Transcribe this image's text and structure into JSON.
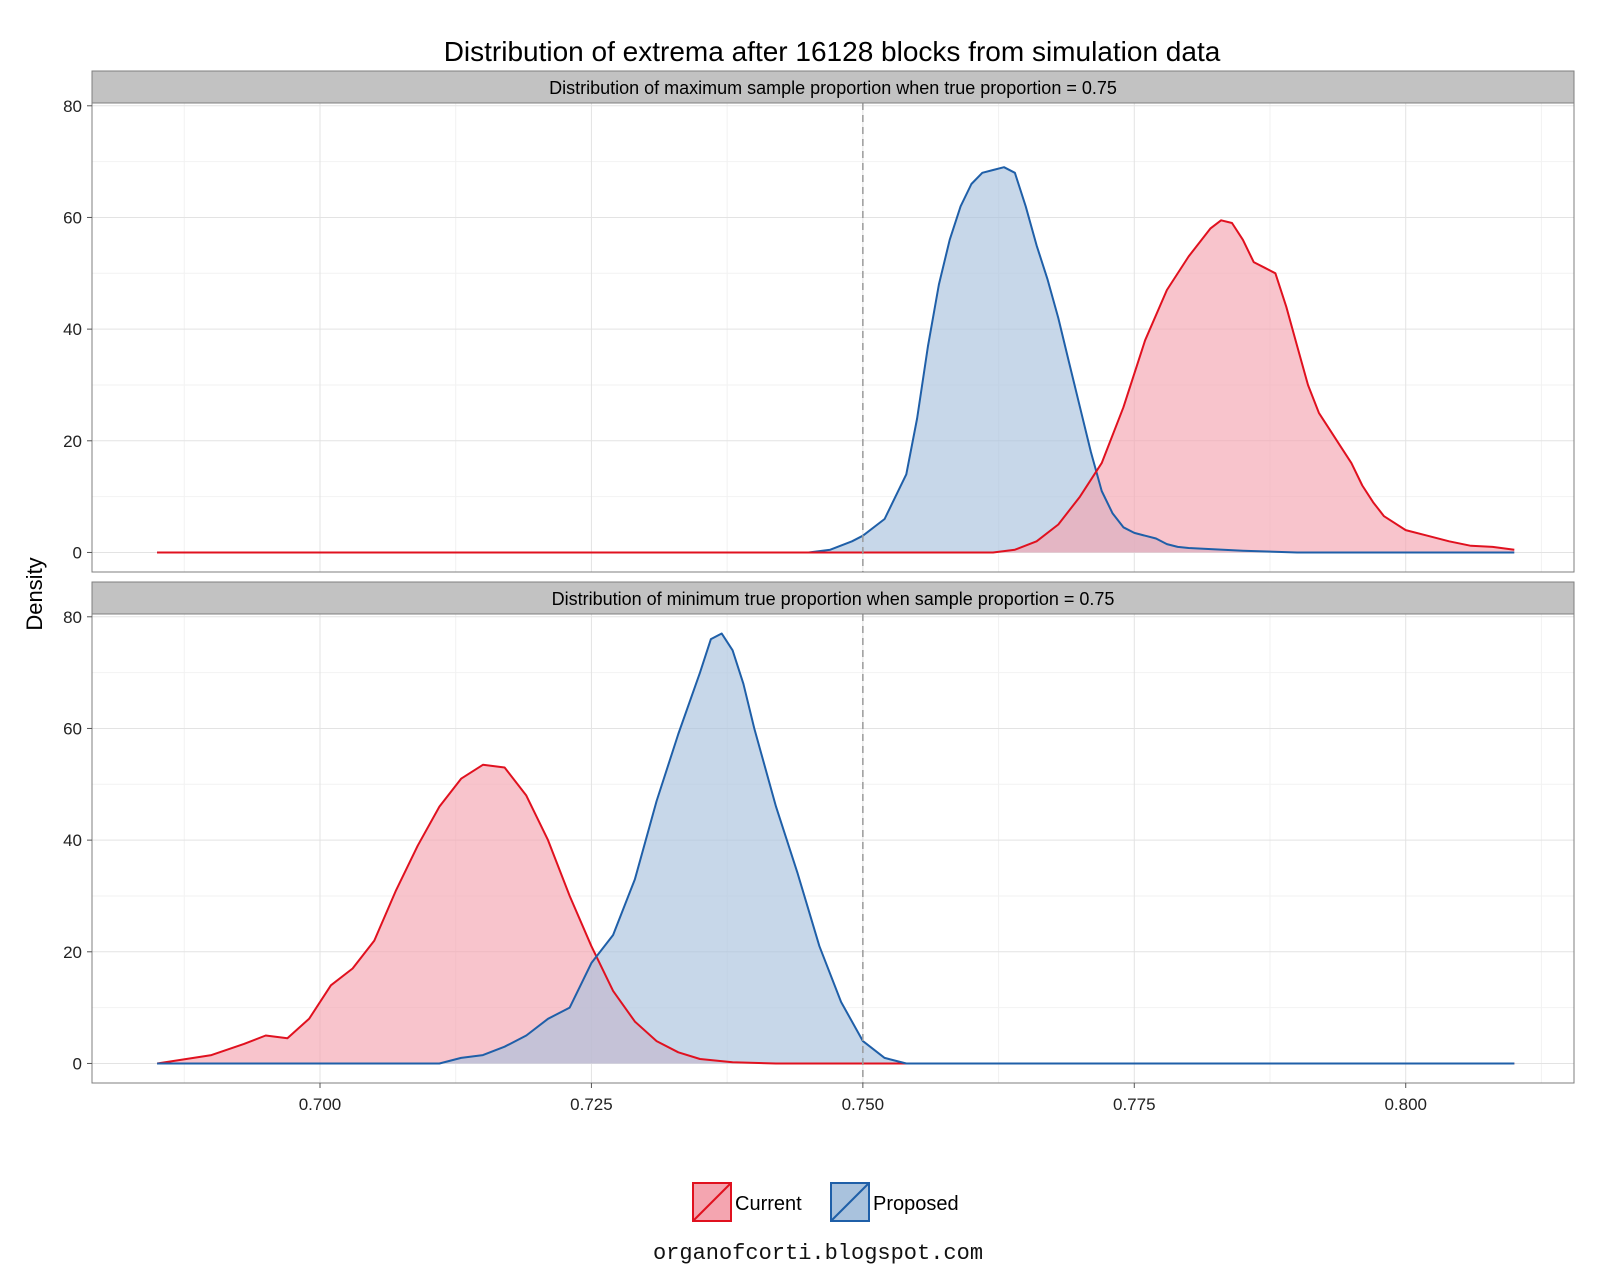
{
  "chart_data": {
    "type": "area",
    "title": "Distribution of extrema after 16128 blocks from simulation data",
    "ylabel": "Density",
    "xlabel": "",
    "xlim": [
      0.679,
      0.8155
    ],
    "ylim": [
      -3.5,
      80.5
    ],
    "x_ticks": [
      0.7,
      0.725,
      0.75,
      0.775,
      0.8
    ],
    "x_tick_labels": [
      "0.700",
      "0.725",
      "0.750",
      "0.775",
      "0.800"
    ],
    "y_ticks": [
      0,
      20,
      40,
      60,
      80
    ],
    "y_tick_labels": [
      "0",
      "20",
      "40",
      "60",
      "80"
    ],
    "grid": true,
    "reference_line": {
      "x": 0.75,
      "style": "dashed"
    },
    "legend": {
      "position": "bottom",
      "entries": [
        "Current",
        "Proposed"
      ]
    },
    "colors": {
      "Current": {
        "line": "#e0111f",
        "fill": "#f4a5b0"
      },
      "Proposed": {
        "line": "#1f5fa8",
        "fill": "#a9c2dd"
      }
    },
    "panels": [
      {
        "strip": "Distribution of maximum sample proportion when true proportion = 0.75",
        "series": [
          {
            "name": "Proposed",
            "x": [
              0.685,
              0.745,
              0.747,
              0.749,
              0.75,
              0.752,
              0.754,
              0.755,
              0.756,
              0.757,
              0.758,
              0.759,
              0.76,
              0.761,
              0.762,
              0.763,
              0.764,
              0.765,
              0.766,
              0.767,
              0.768,
              0.769,
              0.77,
              0.771,
              0.772,
              0.773,
              0.774,
              0.775,
              0.776,
              0.777,
              0.778,
              0.779,
              0.78,
              0.785,
              0.79,
              0.81
            ],
            "y": [
              0,
              0,
              0.5,
              2,
              3,
              6,
              14,
              24,
              37,
              48,
              56,
              62,
              66,
              68,
              68.5,
              69,
              68,
              62,
              55,
              49,
              42,
              34,
              26,
              18,
              11,
              7,
              4.5,
              3.5,
              3,
              2.5,
              1.5,
              1,
              0.8,
              0.3,
              0,
              0
            ]
          },
          {
            "name": "Current",
            "x": [
              0.685,
              0.762,
              0.764,
              0.766,
              0.768,
              0.77,
              0.772,
              0.774,
              0.776,
              0.778,
              0.78,
              0.782,
              0.783,
              0.784,
              0.785,
              0.786,
              0.787,
              0.788,
              0.789,
              0.79,
              0.791,
              0.792,
              0.793,
              0.794,
              0.795,
              0.796,
              0.797,
              0.798,
              0.8,
              0.802,
              0.804,
              0.806,
              0.808,
              0.81
            ],
            "y": [
              0,
              0,
              0.5,
              2,
              5,
              10,
              16,
              26,
              38,
              47,
              53,
              58,
              59.5,
              59,
              56,
              52,
              51,
              50,
              44,
              37,
              30,
              25,
              22,
              19,
              16,
              12,
              9,
              6.5,
              4,
              3,
              2,
              1.2,
              1,
              0.5
            ]
          }
        ]
      },
      {
        "strip": "Distribution of minimum true proportion when sample proportion = 0.75",
        "series": [
          {
            "name": "Current",
            "x": [
              0.685,
              0.69,
              0.693,
              0.695,
              0.697,
              0.699,
              0.701,
              0.703,
              0.705,
              0.707,
              0.709,
              0.711,
              0.713,
              0.715,
              0.717,
              0.719,
              0.721,
              0.723,
              0.725,
              0.727,
              0.729,
              0.731,
              0.733,
              0.735,
              0.738,
              0.742,
              0.75,
              0.81
            ],
            "y": [
              0,
              1.5,
              3.5,
              5,
              4.5,
              8,
              14,
              17,
              22,
              31,
              39,
              46,
              51,
              53.5,
              53,
              48,
              40,
              30,
              21,
              13,
              7.5,
              4,
              2,
              0.8,
              0.2,
              0,
              0,
              0
            ]
          },
          {
            "name": "Proposed",
            "x": [
              0.685,
              0.711,
              0.713,
              0.715,
              0.717,
              0.719,
              0.721,
              0.723,
              0.725,
              0.727,
              0.729,
              0.731,
              0.733,
              0.735,
              0.736,
              0.737,
              0.738,
              0.739,
              0.74,
              0.742,
              0.744,
              0.746,
              0.748,
              0.75,
              0.752,
              0.754,
              0.81
            ],
            "y": [
              0,
              0,
              1,
              1.5,
              3,
              5,
              8,
              10,
              18,
              23,
              33,
              47,
              59,
              70,
              76,
              77,
              74,
              68,
              60,
              46,
              34,
              21,
              11,
              4,
              1,
              0,
              0
            ]
          }
        ]
      }
    ]
  },
  "caption": "organofcorti.blogspot.com"
}
